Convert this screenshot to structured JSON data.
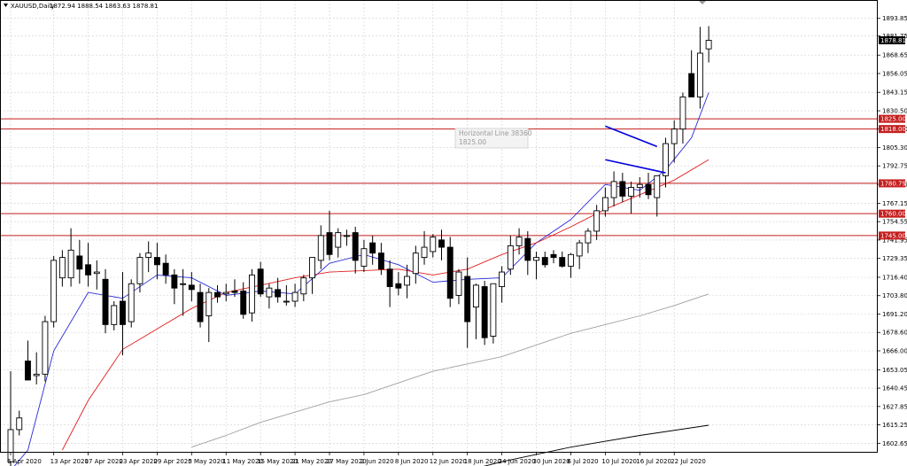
{
  "header": {
    "symbol": "XAUUSD,Daily",
    "ohlc": "1872.94 1888.54 1863.63 1878.81"
  },
  "tooltip": {
    "line1": "Horizontal Line 38360",
    "line2": "1825.00"
  },
  "colors": {
    "bull": "#ffffff",
    "bear": "#000000",
    "ma_fast": "#2a2ad8",
    "ma_mid": "#e11d1d",
    "ma_slow": "#a0a0a0",
    "ma_long": "#000000",
    "hline": "#c41e1e",
    "badge": "#c41e1e",
    "trend": "#0000dd",
    "grid": "#cfcfcf"
  },
  "chart_data": {
    "type": "candlestick",
    "ylim": [
      1598,
      1904
    ],
    "x_tick_labels": [
      "6 Apr 2020",
      "13 Apr 2020",
      "17 Apr 2020",
      "23 Apr 2020",
      "29 Apr 2020",
      "5 May 2020",
      "11 May 2020",
      "15 May 2020",
      "21 May 2020",
      "27 May 2020",
      "2 Jun 2020",
      "8 Jun 2020",
      "12 Jun 2020",
      "18 Jun 2020",
      "24 Jun 2020",
      "30 Jun 2020",
      "6 Jul 2020",
      "10 Jul 2020",
      "16 Jul 2020",
      "22 Jul 2020"
    ],
    "x_tick_index": [
      0,
      5,
      9,
      13,
      17,
      21,
      25,
      29,
      33,
      37,
      41,
      45,
      49,
      53,
      57,
      61,
      65,
      69,
      73,
      77
    ],
    "y_tick_labels": [
      "1893.85",
      "1881.75",
      "1868.65",
      "1856.05",
      "1843.15",
      "1830.50",
      "1818.00",
      "1805.30",
      "1792.75",
      "1780.15",
      "1767.15",
      "1754.55",
      "1741.95",
      "1729.35",
      "1716.40",
      "1703.80",
      "1691.20",
      "1678.60",
      "1666.00",
      "1653.05",
      "1640.45",
      "1627.85",
      "1615.25",
      "1602.65"
    ],
    "candles": [
      {
        "date": "2 Apr 2020",
        "o": 1590,
        "h": 1652,
        "l": 1586,
        "c": 1612
      },
      {
        "date": "3 Apr 2020",
        "o": 1612,
        "h": 1625,
        "l": 1608,
        "c": 1620
      },
      {
        "date": "6 Apr 2020",
        "o": 1659,
        "h": 1673,
        "l": 1646,
        "c": 1646
      },
      {
        "date": "7 Apr 2020",
        "o": 1649,
        "h": 1665,
        "l": 1643,
        "c": 1650
      },
      {
        "date": "8 Apr 2020",
        "o": 1650,
        "h": 1690,
        "l": 1645,
        "c": 1686
      },
      {
        "date": "9 Apr 2020",
        "o": 1686,
        "h": 1731,
        "l": 1682,
        "c": 1728
      },
      {
        "date": "10 Apr 2020",
        "o": 1716,
        "h": 1735,
        "l": 1710,
        "c": 1730
      },
      {
        "date": "13 Apr 2020",
        "o": 1716,
        "h": 1750,
        "l": 1710,
        "c": 1735
      },
      {
        "date": "14 Apr 2020",
        "o": 1731,
        "h": 1742,
        "l": 1712,
        "c": 1722
      },
      {
        "date": "15 Apr 2020",
        "o": 1725,
        "h": 1740,
        "l": 1710,
        "c": 1718
      },
      {
        "date": "16 Apr 2020",
        "o": 1719,
        "h": 1728,
        "l": 1708,
        "c": 1720
      },
      {
        "date": "17 Apr 2020",
        "o": 1715,
        "h": 1722,
        "l": 1678,
        "c": 1684
      },
      {
        "date": "20 Apr 2020",
        "o": 1684,
        "h": 1700,
        "l": 1680,
        "c": 1697
      },
      {
        "date": "21 Apr 2020",
        "o": 1700,
        "h": 1720,
        "l": 1663,
        "c": 1684
      },
      {
        "date": "22 Apr 2020",
        "o": 1686,
        "h": 1715,
        "l": 1682,
        "c": 1712
      },
      {
        "date": "23 Apr 2020",
        "o": 1712,
        "h": 1733,
        "l": 1706,
        "c": 1730
      },
      {
        "date": "24 Apr 2020",
        "o": 1730,
        "h": 1741,
        "l": 1720,
        "c": 1733
      },
      {
        "date": "27 Apr 2020",
        "o": 1730,
        "h": 1740,
        "l": 1715,
        "c": 1725
      },
      {
        "date": "28 Apr 2020",
        "o": 1726,
        "h": 1732,
        "l": 1712,
        "c": 1718
      },
      {
        "date": "29 Apr 2020",
        "o": 1718,
        "h": 1722,
        "l": 1698,
        "c": 1709
      },
      {
        "date": "30 Apr 2020",
        "o": 1712,
        "h": 1722,
        "l": 1690,
        "c": 1712
      },
      {
        "date": "1 May 2020",
        "o": 1711,
        "h": 1720,
        "l": 1700,
        "c": 1708
      },
      {
        "date": "4 May 2020",
        "o": 1706,
        "h": 1712,
        "l": 1682,
        "c": 1686
      },
      {
        "date": "5 May 2020",
        "o": 1690,
        "h": 1709,
        "l": 1672,
        "c": 1706
      },
      {
        "date": "6 May 2020",
        "o": 1706,
        "h": 1711,
        "l": 1699,
        "c": 1703
      },
      {
        "date": "7 May 2020",
        "o": 1705,
        "h": 1712,
        "l": 1700,
        "c": 1706
      },
      {
        "date": "8 May 2020",
        "o": 1707,
        "h": 1715,
        "l": 1703,
        "c": 1706
      },
      {
        "date": "11 May 2020",
        "o": 1707,
        "h": 1713,
        "l": 1688,
        "c": 1691
      },
      {
        "date": "12 May 2020",
        "o": 1692,
        "h": 1722,
        "l": 1686,
        "c": 1718
      },
      {
        "date": "13 May 2020",
        "o": 1722,
        "h": 1727,
        "l": 1703,
        "c": 1705
      },
      {
        "date": "14 May 2020",
        "o": 1703,
        "h": 1712,
        "l": 1695,
        "c": 1709
      },
      {
        "date": "15 May 2020",
        "o": 1708,
        "h": 1716,
        "l": 1699,
        "c": 1703
      },
      {
        "date": "18 May 2020",
        "o": 1700,
        "h": 1711,
        "l": 1697,
        "c": 1700
      },
      {
        "date": "19 May 2020",
        "o": 1700,
        "h": 1712,
        "l": 1696,
        "c": 1706
      },
      {
        "date": "20 May 2020",
        "o": 1705,
        "h": 1718,
        "l": 1700,
        "c": 1716
      },
      {
        "date": "21 May 2020",
        "o": 1716,
        "h": 1730,
        "l": 1705,
        "c": 1730
      },
      {
        "date": "22 May 2020",
        "o": 1728,
        "h": 1752,
        "l": 1722,
        "c": 1745
      },
      {
        "date": "25 May 2020",
        "o": 1747,
        "h": 1762,
        "l": 1728,
        "c": 1732
      },
      {
        "date": "26 May 2020",
        "o": 1737,
        "h": 1750,
        "l": 1730,
        "c": 1747
      },
      {
        "date": "27 May 2020",
        "o": 1745,
        "h": 1749,
        "l": 1738,
        "c": 1745
      },
      {
        "date": "28 May 2020",
        "o": 1747,
        "h": 1751,
        "l": 1719,
        "c": 1728
      },
      {
        "date": "29 May 2020",
        "o": 1724,
        "h": 1742,
        "l": 1720,
        "c": 1736
      },
      {
        "date": "1 Jun 2020",
        "o": 1740,
        "h": 1745,
        "l": 1725,
        "c": 1733
      },
      {
        "date": "2 Jun 2020",
        "o": 1733,
        "h": 1740,
        "l": 1718,
        "c": 1722
      },
      {
        "date": "3 Jun 2020",
        "o": 1722,
        "h": 1728,
        "l": 1696,
        "c": 1710
      },
      {
        "date": "4 Jun 2020",
        "o": 1712,
        "h": 1720,
        "l": 1704,
        "c": 1709
      },
      {
        "date": "5 Jun 2020",
        "o": 1711,
        "h": 1725,
        "l": 1702,
        "c": 1717
      },
      {
        "date": "8 Jun 2020",
        "o": 1719,
        "h": 1738,
        "l": 1712,
        "c": 1733
      },
      {
        "date": "9 Jun 2020",
        "o": 1730,
        "h": 1748,
        "l": 1725,
        "c": 1737
      },
      {
        "date": "10 Jun 2020",
        "o": 1734,
        "h": 1746,
        "l": 1730,
        "c": 1744
      },
      {
        "date": "11 Jun 2020",
        "o": 1742,
        "h": 1749,
        "l": 1728,
        "c": 1737
      },
      {
        "date": "12 Jun 2020",
        "o": 1737,
        "h": 1744,
        "l": 1696,
        "c": 1702
      },
      {
        "date": "15 Jun 2020",
        "o": 1704,
        "h": 1722,
        "l": 1698,
        "c": 1720
      },
      {
        "date": "16 Jun 2020",
        "o": 1717,
        "h": 1730,
        "l": 1668,
        "c": 1686
      },
      {
        "date": "17 Jun 2020",
        "o": 1696,
        "h": 1712,
        "l": 1674,
        "c": 1711
      },
      {
        "date": "18 Jun 2020",
        "o": 1710,
        "h": 1714,
        "l": 1670,
        "c": 1675
      },
      {
        "date": "19 Jun 2020",
        "o": 1676,
        "h": 1712,
        "l": 1671,
        "c": 1712
      },
      {
        "date": "22 Jun 2020",
        "o": 1710,
        "h": 1724,
        "l": 1699,
        "c": 1720
      },
      {
        "date": "23 Jun 2020",
        "o": 1722,
        "h": 1745,
        "l": 1718,
        "c": 1738
      },
      {
        "date": "24 Jun 2020",
        "o": 1738,
        "h": 1750,
        "l": 1732,
        "c": 1744
      },
      {
        "date": "25 Jun 2020",
        "o": 1743,
        "h": 1748,
        "l": 1718,
        "c": 1728
      },
      {
        "date": "26 Jun 2020",
        "o": 1728,
        "h": 1734,
        "l": 1715,
        "c": 1730
      },
      {
        "date": "29 Jun 2020",
        "o": 1730,
        "h": 1734,
        "l": 1723,
        "c": 1725
      },
      {
        "date": "30 Jun 2020",
        "o": 1732,
        "h": 1735,
        "l": 1726,
        "c": 1730
      },
      {
        "date": "1 Jul 2020",
        "o": 1730,
        "h": 1734,
        "l": 1723,
        "c": 1724
      },
      {
        "date": "2 Jul 2020",
        "o": 1724,
        "h": 1733,
        "l": 1716,
        "c": 1732
      },
      {
        "date": "3 Jul 2020",
        "o": 1731,
        "h": 1742,
        "l": 1722,
        "c": 1740
      },
      {
        "date": "6 Jul 2020",
        "o": 1740,
        "h": 1750,
        "l": 1733,
        "c": 1748
      },
      {
        "date": "7 Jul 2020",
        "o": 1748,
        "h": 1766,
        "l": 1742,
        "c": 1762
      },
      {
        "date": "8 Jul 2020",
        "o": 1762,
        "h": 1778,
        "l": 1758,
        "c": 1771
      },
      {
        "date": "9 Jul 2020",
        "o": 1771,
        "h": 1789,
        "l": 1765,
        "c": 1782
      },
      {
        "date": "10 Jul 2020",
        "o": 1782,
        "h": 1788,
        "l": 1768,
        "c": 1772
      },
      {
        "date": "13 Jul 2020",
        "o": 1772,
        "h": 1782,
        "l": 1760,
        "c": 1778
      },
      {
        "date": "14 Jul 2020",
        "o": 1778,
        "h": 1785,
        "l": 1771,
        "c": 1780
      },
      {
        "date": "15 Jul 2020",
        "o": 1780,
        "h": 1788,
        "l": 1770,
        "c": 1773
      },
      {
        "date": "16 Jul 2020",
        "o": 1771,
        "h": 1786,
        "l": 1758,
        "c": 1786
      },
      {
        "date": "17 Jul 2020",
        "o": 1786,
        "h": 1812,
        "l": 1778,
        "c": 1808
      },
      {
        "date": "20 Jul 2020",
        "o": 1808,
        "h": 1824,
        "l": 1795,
        "c": 1818
      },
      {
        "date": "21 Jul 2020",
        "o": 1818,
        "h": 1843,
        "l": 1808,
        "c": 1840
      },
      {
        "date": "22 Jul 2020",
        "o": 1856,
        "h": 1872,
        "l": 1840,
        "c": 1840
      },
      {
        "date": "23 Jul 2020",
        "o": 1840,
        "h": 1888,
        "l": 1832,
        "c": 1870
      },
      {
        "date": "24 Jul 2020",
        "o": 1872.94,
        "h": 1888.54,
        "l": 1863.63,
        "c": 1878.81
      }
    ],
    "moving_averages": [
      {
        "role": "ma_fast",
        "points": [
          [
            0,
            1584
          ],
          [
            2,
            1598
          ],
          [
            5,
            1666
          ],
          [
            9,
            1706
          ],
          [
            13,
            1702
          ],
          [
            17,
            1718
          ],
          [
            21,
            1716
          ],
          [
            25,
            1704
          ],
          [
            29,
            1707
          ],
          [
            33,
            1705
          ],
          [
            37,
            1726
          ],
          [
            41,
            1732
          ],
          [
            45,
            1725
          ],
          [
            49,
            1713
          ],
          [
            53,
            1715
          ],
          [
            57,
            1716
          ],
          [
            61,
            1740
          ],
          [
            65,
            1756
          ],
          [
            69,
            1780
          ],
          [
            73,
            1776
          ],
          [
            76,
            1790
          ],
          [
            79,
            1812
          ],
          [
            81,
            1843
          ]
        ]
      },
      {
        "role": "ma_mid",
        "points": [
          [
            6,
            1598
          ],
          [
            9,
            1632
          ],
          [
            13,
            1667
          ],
          [
            17,
            1681
          ],
          [
            21,
            1695
          ],
          [
            25,
            1706
          ],
          [
            29,
            1711
          ],
          [
            33,
            1716
          ],
          [
            37,
            1720
          ],
          [
            41,
            1721
          ],
          [
            45,
            1722
          ],
          [
            49,
            1718
          ],
          [
            53,
            1722
          ],
          [
            57,
            1732
          ],
          [
            61,
            1740
          ],
          [
            65,
            1751
          ],
          [
            69,
            1763
          ],
          [
            73,
            1773
          ],
          [
            77,
            1783
          ],
          [
            81,
            1797
          ]
        ]
      },
      {
        "role": "ma_slow",
        "points": [
          [
            21,
            1600
          ],
          [
            25,
            1608
          ],
          [
            29,
            1617
          ],
          [
            33,
            1624
          ],
          [
            37,
            1631
          ],
          [
            41,
            1636
          ],
          [
            45,
            1644
          ],
          [
            49,
            1652
          ],
          [
            53,
            1657
          ],
          [
            57,
            1662
          ],
          [
            61,
            1670
          ],
          [
            65,
            1678
          ],
          [
            69,
            1684
          ],
          [
            73,
            1690
          ],
          [
            77,
            1697
          ],
          [
            81,
            1705
          ]
        ]
      },
      {
        "role": "ma_long",
        "points": [
          [
            49,
            1578
          ],
          [
            57,
            1590
          ],
          [
            65,
            1600
          ],
          [
            73,
            1608
          ],
          [
            81,
            1615
          ]
        ]
      }
    ],
    "horizontal_lines": [
      1825.0,
      1818.0,
      1780.79,
      1760.0,
      1745.0
    ],
    "horizontal_line_labels": [
      "1825.00",
      "1818.00",
      "1780.79",
      "1760.00",
      "1745.00"
    ],
    "current_price": 1878.81,
    "current_price_label": "1878.81",
    "trend_lines": [
      {
        "from": [
          69,
          1820
        ],
        "to": [
          75,
          1806
        ]
      },
      {
        "from": [
          69,
          1797
        ],
        "to": [
          76,
          1788
        ]
      }
    ],
    "grid": true
  }
}
